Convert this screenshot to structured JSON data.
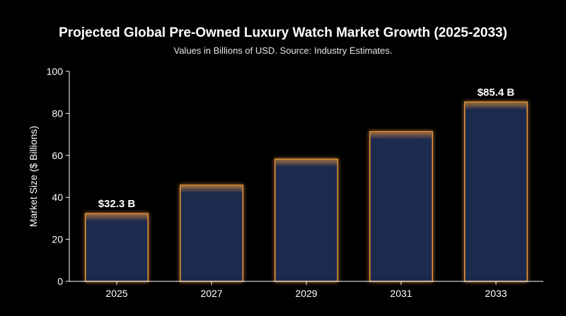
{
  "chart_data": {
    "type": "bar",
    "title": "Projected Global Pre-Owned Luxury Watch Market Growth (2025-2033)",
    "subtitle": "Values in Billions of USD. Source: Industry Estimates.",
    "xlabel": "",
    "ylabel": "Market Size ($ Billions)",
    "categories": [
      "2025",
      "2027",
      "2029",
      "2031",
      "2033"
    ],
    "values": [
      32.3,
      45.8,
      58.2,
      71.3,
      85.4
    ],
    "ylim": [
      0,
      100
    ],
    "yticks": [
      0,
      20,
      40,
      60,
      80,
      100
    ],
    "data_labels": [
      {
        "index": 0,
        "text": "$32.3 B"
      },
      {
        "index": 4,
        "text": "$85.4 B"
      }
    ],
    "grid": false,
    "legend": "none",
    "colors": {
      "background": "#000000",
      "bar_fill": "#1b2c4e",
      "bar_glow": "#ffa033",
      "axis": "#ffffff",
      "text": "#ffffff"
    }
  }
}
